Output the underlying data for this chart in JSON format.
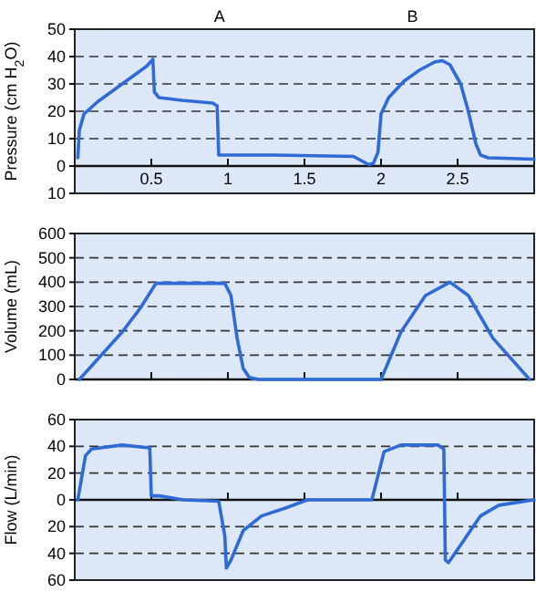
{
  "chart_data": [
    {
      "type": "line",
      "ylabel": "Pressure (cm H$_{2}$O)",
      "xlim": [
        0,
        3
      ],
      "xticks": [
        0.5,
        1,
        1.5,
        2,
        2.5
      ],
      "ylim": [
        -10,
        50
      ],
      "yticks": [
        {
          "value": -10,
          "label": "10"
        },
        0,
        10,
        20,
        30,
        40,
        50
      ],
      "grid": "y",
      "annotations": [
        "A",
        "B"
      ],
      "series": [
        {
          "color": "#2f6ad6",
          "x": [
            0.02,
            0.03,
            0.06,
            0.15,
            0.31,
            0.47,
            0.51,
            0.52,
            0.55,
            0.7,
            0.9,
            0.93,
            0.94,
            1.3,
            1.82,
            1.87,
            1.92,
            1.95,
            1.98,
            2.0,
            2.05,
            2.15,
            2.25,
            2.35,
            2.4,
            2.45,
            2.52,
            2.57,
            2.62,
            2.65,
            2.7,
            3.0
          ],
          "values": [
            3,
            13,
            19,
            23.5,
            30,
            36.5,
            39,
            27,
            25,
            24,
            23,
            22,
            4,
            4,
            3.5,
            2,
            0.5,
            1,
            5,
            19,
            25,
            31,
            35,
            38,
            38.5,
            37,
            30,
            20,
            8,
            4,
            3,
            2.5
          ]
        }
      ]
    },
    {
      "type": "line",
      "ylabel": "Volume (mL)",
      "xlim": [
        0,
        3
      ],
      "xticks": [
        0.5,
        1,
        1.5,
        2,
        2.5
      ],
      "ylim": [
        0,
        600
      ],
      "yticks": [
        0,
        100,
        200,
        300,
        400,
        500,
        600
      ],
      "grid": "y",
      "tick_labels": "y",
      "series": [
        {
          "color": "#2f6ad6",
          "x": [
            0.03,
            0.31,
            0.43,
            0.53,
            0.98,
            1.02,
            1.06,
            1.1,
            1.14,
            1.2,
            2.0,
            2.13,
            2.29,
            2.45,
            2.57,
            2.73,
            2.97
          ],
          "values": [
            0,
            195,
            295,
            395,
            395,
            345,
            170,
            45,
            8,
            0,
            0,
            195,
            345,
            400,
            345,
            170,
            0
          ]
        }
      ]
    },
    {
      "type": "line",
      "ylabel": "Flow (L/min)",
      "xlim": [
        0,
        3
      ],
      "xticks": [
        0.5,
        1,
        1.5,
        2,
        2.5
      ],
      "ylim": [
        -60,
        60
      ],
      "yticks": [
        {
          "value": -60,
          "label": "60"
        },
        {
          "value": -40,
          "label": "40"
        },
        {
          "value": -20,
          "label": "20"
        },
        0,
        20,
        40,
        60
      ],
      "grid": "y",
      "tick_labels": "y",
      "series": [
        {
          "color": "#2f6ad6",
          "x": [
            0.02,
            0.07,
            0.11,
            0.31,
            0.47,
            0.49,
            0.5,
            0.55,
            0.71,
            0.94,
            0.98,
            0.99,
            1.02,
            1.1,
            1.22,
            1.38,
            1.52,
            1.94,
            2.02,
            2.13,
            2.37,
            2.41,
            2.42,
            2.44,
            2.53,
            2.65,
            2.77,
            3.0
          ],
          "values": [
            0,
            33,
            38,
            41,
            39,
            39,
            3,
            3,
            0,
            -1,
            -27,
            -51,
            -45,
            -23,
            -12,
            -6,
            0,
            0,
            36,
            41,
            41,
            38,
            -45,
            -47,
            -32,
            -12,
            -4,
            0
          ]
        }
      ]
    }
  ]
}
